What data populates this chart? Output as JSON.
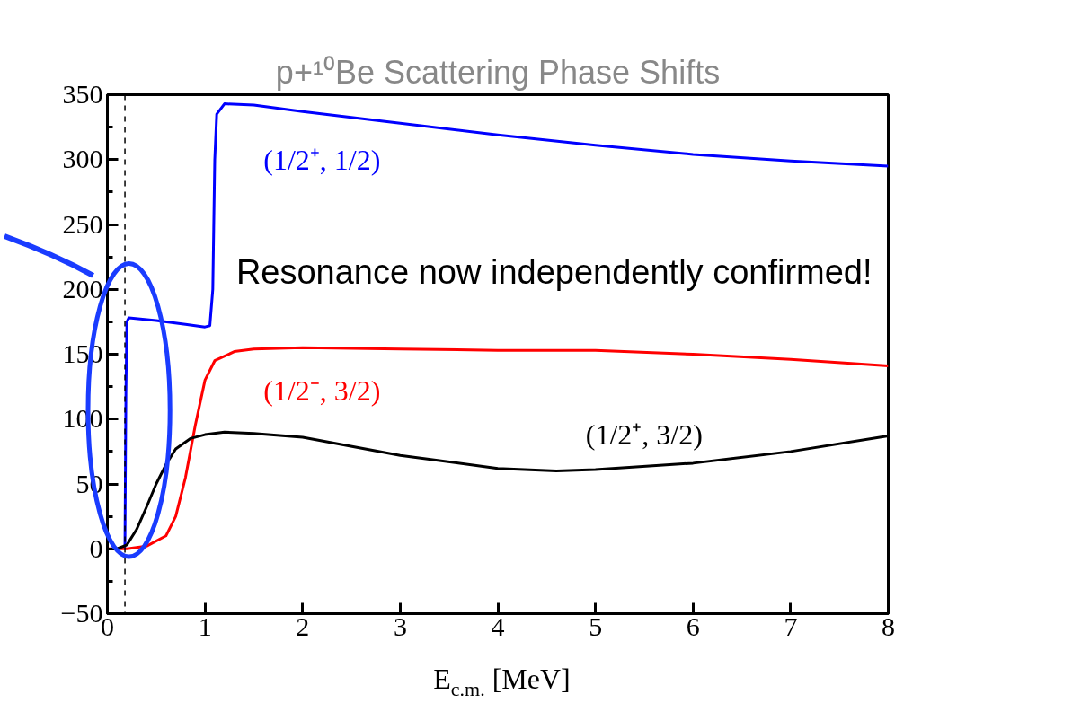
{
  "chart_data": {
    "type": "line",
    "title": "p+¹⁰Be Scattering Phase Shifts",
    "xlabel": "E$_{c.m.}$ [MeV]",
    "xlim": [
      0,
      8
    ],
    "xticks": [
      0,
      1,
      2,
      3,
      4,
      5,
      6,
      7,
      8
    ],
    "ylim": [
      -50,
      350
    ],
    "yticks": [
      {
        "value": -50,
        "label": "−50"
      },
      0,
      50,
      100,
      150,
      200,
      250,
      300,
      350
    ],
    "grid": false,
    "line_style": "solid",
    "marker": "none",
    "ref_lines": [
      {
        "axis": "x",
        "value": 0.18,
        "color": "#000000",
        "line_style": "dashed"
      }
    ],
    "annotations": [
      "Resonance now independently confirmed!"
    ],
    "series": [
      {
        "name": "(1/2⁺, 1/2)",
        "color": "#0000ff",
        "x": [
          0.17,
          0.18,
          0.19,
          0.2,
          0.22,
          0.5,
          0.8,
          1.0,
          1.05,
          1.08,
          1.1,
          1.12,
          1.2,
          1.5,
          2,
          3,
          4,
          5,
          6,
          7,
          8
        ],
        "values": [
          0,
          2,
          120,
          175,
          178,
          176,
          173,
          171,
          172,
          200,
          300,
          335,
          343,
          342,
          337,
          328,
          319,
          311,
          304,
          299,
          295
        ]
      },
      {
        "name": "(1/2⁻, 3/2)",
        "color": "#ff0000",
        "x": [
          0,
          0.2,
          0.4,
          0.6,
          0.7,
          0.8,
          0.9,
          1.0,
          1.1,
          1.3,
          1.5,
          2,
          3,
          4,
          5,
          6,
          7,
          8
        ],
        "values": [
          0,
          0,
          2,
          10,
          25,
          55,
          95,
          130,
          145,
          152,
          154,
          155,
          154,
          153,
          153,
          150,
          146,
          141
        ]
      },
      {
        "name": "(1/2⁺, 3/2)",
        "color": "#000000",
        "x": [
          0.1,
          0.2,
          0.3,
          0.4,
          0.5,
          0.6,
          0.7,
          0.85,
          1.0,
          1.2,
          1.5,
          2,
          3,
          4,
          4.6,
          5,
          6,
          7,
          8
        ],
        "values": [
          0,
          3,
          15,
          32,
          50,
          65,
          77,
          85,
          88,
          90,
          89,
          86,
          72,
          62,
          60,
          61,
          66,
          75,
          87
        ]
      }
    ]
  }
}
